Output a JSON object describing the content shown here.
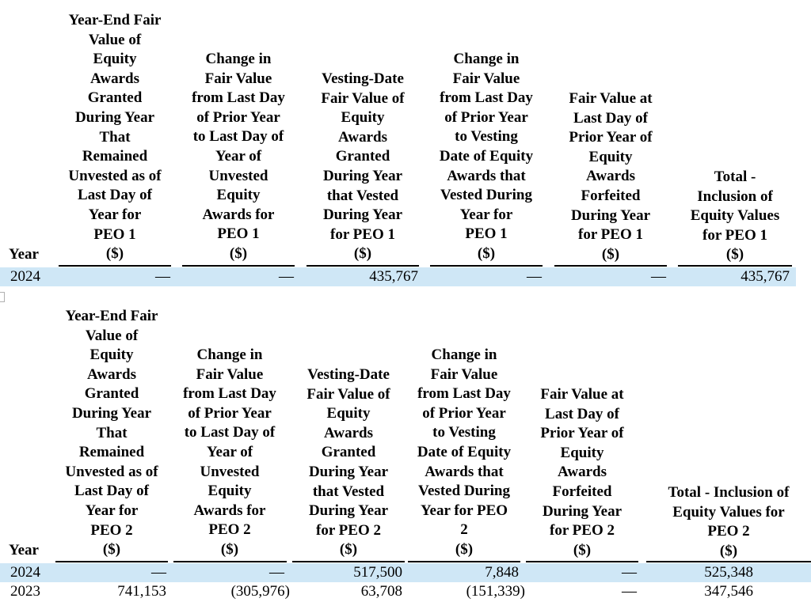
{
  "table1": {
    "year_header": "Year",
    "columns": [
      {
        "label": "Year-End Fair Value of Equity Awards Granted During Year That Remained Unvested as of Last Day of Year for PEO 1",
        "unit": "($)",
        "lines": [
          "Year-End Fair",
          "Value of",
          "Equity",
          "Awards",
          "Granted",
          "During Year",
          "That",
          "Remained",
          "Unvested as of",
          "Last Day of",
          "Year for",
          "PEO 1",
          "($)"
        ]
      },
      {
        "label": "Change in Fair Value from Last Day of Prior Year to Last Day of Year of Unvested Equity Awards for PEO 1",
        "unit": "($)",
        "lines": [
          "Change in",
          "Fair Value",
          "from Last Day",
          "of Prior Year",
          "to Last Day of",
          "Year of",
          "Unvested",
          "Equity",
          "Awards for",
          "PEO 1",
          "($)"
        ]
      },
      {
        "label": "Vesting-Date Fair Value of Equity Awards Granted During Year that Vested During Year for PEO 1",
        "unit": "($)",
        "lines": [
          "Vesting-Date",
          "Fair Value of",
          "Equity",
          "Awards",
          "Granted",
          "During Year",
          "that Vested",
          "During Year",
          "for PEO 1",
          "($)"
        ]
      },
      {
        "label": "Change in Fair Value from Last Day of Prior Year to Vesting Date of Equity Awards that Vested During Year for PEO 1",
        "unit": "($)",
        "lines": [
          "Change in",
          "Fair Value",
          "from Last Day",
          "of Prior Year",
          "to Vesting",
          "Date of Equity",
          "Awards that",
          "Vested During",
          "Year for",
          "PEO 1",
          "($)"
        ]
      },
      {
        "label": "Fair Value at Last Day of Prior Year of Equity Awards Forfeited During Year for PEO 1",
        "unit": "($)",
        "lines": [
          "Fair Value at",
          "Last Day of",
          "Prior Year of",
          "Equity",
          "Awards",
          "Forfeited",
          "During Year",
          "for PEO 1",
          "($)"
        ]
      },
      {
        "label": "Total - Inclusion of Equity Values for PEO 1",
        "unit": "($)",
        "lines": [
          "Total -",
          "Inclusion of",
          "Equity Values",
          "for PEO 1",
          "($)"
        ]
      }
    ],
    "rows": [
      {
        "year": "2024",
        "values": [
          "—",
          "—",
          "435,767",
          "—",
          "—",
          "435,767"
        ]
      }
    ]
  },
  "table2": {
    "year_header": "Year",
    "columns": [
      {
        "label": "Year-End Fair Value of Equity Awards Granted During Year That Remained Unvested as of Last Day of Year for PEO 2",
        "unit": "($)",
        "lines": [
          "Year-End Fair",
          "Value of",
          "Equity",
          "Awards",
          "Granted",
          "During Year",
          "That",
          "Remained",
          "Unvested as of",
          "Last Day of",
          "Year for",
          "PEO 2",
          "($)"
        ]
      },
      {
        "label": "Change in Fair Value from Last Day of Prior Year to Last Day of Year of Unvested Equity Awards for PEO 2",
        "unit": "($)",
        "lines": [
          "Change in",
          "Fair Value",
          "from Last Day",
          "of Prior Year",
          "to Last Day of",
          "Year of",
          "Unvested",
          "Equity",
          "Awards for",
          "PEO 2",
          "($)"
        ]
      },
      {
        "label": "Vesting-Date Fair Value of Equity Awards Granted During Year that Vested During Year for PEO 2",
        "unit": "($)",
        "lines": [
          "Vesting-Date",
          "Fair Value of",
          "Equity",
          "Awards",
          "Granted",
          "During Year",
          "that Vested",
          "During Year",
          "for PEO 2",
          "($)"
        ]
      },
      {
        "label": "Change in Fair Value from Last Day of Prior Year to Vesting Date of Equity Awards that Vested During Year for PEO 2",
        "unit": "($)",
        "lines": [
          "Change in",
          "Fair Value",
          "from Last Day",
          "of Prior Year",
          "to Vesting",
          "Date of Equity",
          "Awards that",
          "Vested During",
          "Year for PEO",
          "2",
          "($)"
        ]
      },
      {
        "label": "Fair Value at Last Day of Prior Year of Equity Awards Forfeited During Year for PEO 2",
        "unit": "($)",
        "lines": [
          "Fair Value at",
          "Last Day of",
          "Prior Year of",
          "Equity",
          "Awards",
          "Forfeited",
          "During Year",
          "for PEO 2",
          "($)"
        ]
      },
      {
        "label": "Total - Inclusion of Equity Values for PEO 2",
        "unit": "($)",
        "lines": [
          "Total - Inclusion of",
          "Equity Values for",
          "PEO 2",
          "($)"
        ]
      }
    ],
    "rows": [
      {
        "year": "2024",
        "values": [
          "—",
          "—",
          "517,500",
          "7,848",
          "—",
          "525,348"
        ]
      },
      {
        "year": "2023",
        "values": [
          "741,153",
          "(305,976)",
          "63,708",
          "(151,339)",
          "—",
          "347,546"
        ]
      }
    ]
  }
}
